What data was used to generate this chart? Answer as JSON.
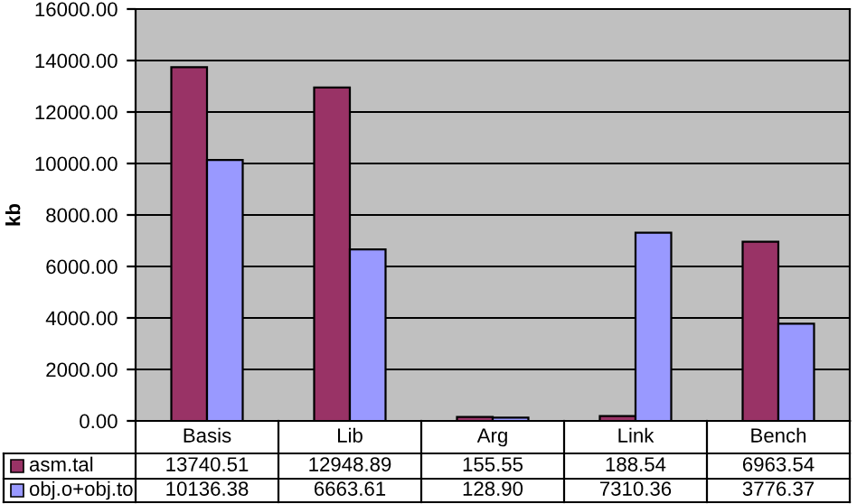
{
  "chart_data": {
    "type": "bar",
    "ylabel": "kb",
    "categories": [
      "Basis",
      "Lib",
      "Arg",
      "Link",
      "Bench"
    ],
    "series": [
      {
        "name": "asm.tal",
        "color": "#993366",
        "values": [
          13740.51,
          12948.89,
          155.55,
          188.54,
          6963.54
        ],
        "value_labels": [
          "13740.51",
          "12948.89",
          "155.55",
          "188.54",
          "6963.54"
        ]
      },
      {
        "name": "obj.o+obj.to",
        "color": "#9999ff",
        "values": [
          10136.38,
          6663.61,
          128.9,
          7310.36,
          3776.37
        ],
        "value_labels": [
          "10136.38",
          "6663.61",
          "128.90",
          "7310.36",
          "3776.37"
        ]
      }
    ],
    "ylim": [
      0,
      16000
    ],
    "yticks": [
      {
        "value": 0,
        "label": "0.00"
      },
      {
        "value": 2000,
        "label": "2000.00"
      },
      {
        "value": 4000,
        "label": "4000.00"
      },
      {
        "value": 6000,
        "label": "6000.00"
      },
      {
        "value": 8000,
        "label": "8000.00"
      },
      {
        "value": 10000,
        "label": "10000.00"
      },
      {
        "value": 12000,
        "label": "12000.00"
      },
      {
        "value": 14000,
        "label": "14000.00"
      },
      {
        "value": 16000,
        "label": "16000.00"
      }
    ],
    "grid": "y",
    "legend": "bottom"
  }
}
